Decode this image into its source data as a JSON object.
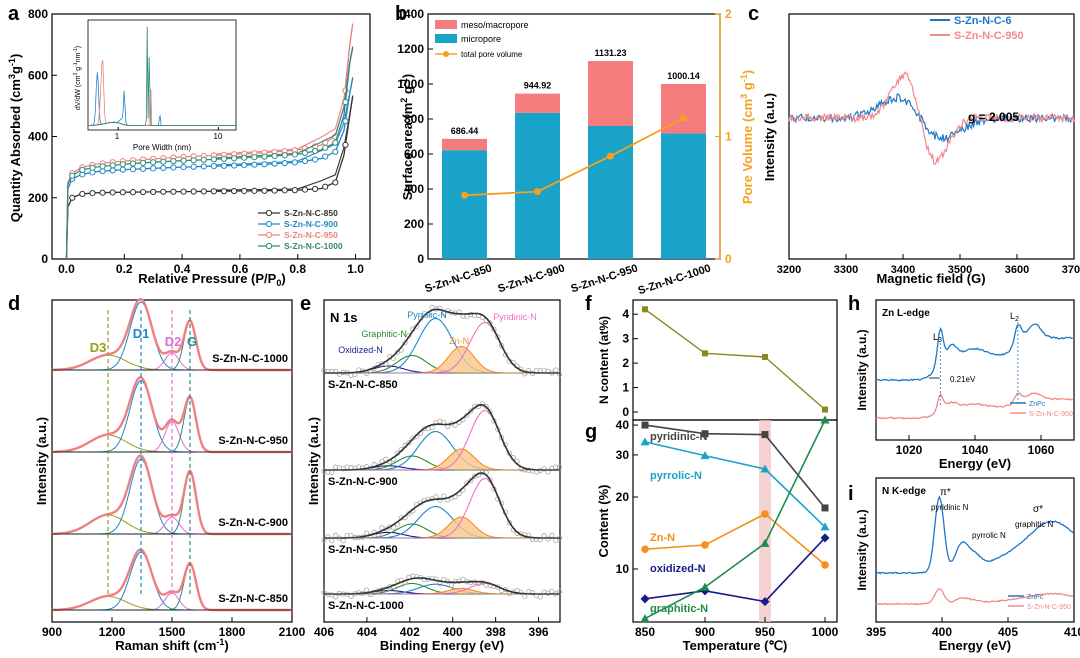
{
  "figure": {
    "description": "Multi-panel scientific figure"
  },
  "chart_data": [
    {
      "panel": "a",
      "type": "line",
      "xlabel": "Relative Pressure (P/P0)",
      "ylabel": "Quantity Absorbed (cm3g-1)",
      "xlim": [
        -0.05,
        1.05
      ],
      "ylim": [
        0,
        800
      ],
      "xticks": [
        "0.0",
        "0.2",
        "0.4",
        "0.6",
        "0.8",
        "1.0"
      ],
      "yticks": [
        "0",
        "200",
        "400",
        "600",
        "800"
      ],
      "series": [
        {
          "name": "S-Zn-N-C-850",
          "color": "#333333",
          "x": [
            0,
            0.005,
            0.02,
            0.05,
            0.1,
            0.2,
            0.3,
            0.4,
            0.5,
            0.6,
            0.7,
            0.8,
            0.88,
            0.93,
            0.96,
            0.98,
            0.99
          ],
          "y": [
            0,
            170,
            200,
            212,
            216,
            218,
            219,
            220,
            221,
            222,
            223,
            225,
            230,
            250,
            340,
            470,
            530
          ]
        },
        {
          "name": "S-Zn-N-C-900",
          "color": "#1E88C8",
          "x": [
            0,
            0.005,
            0.02,
            0.05,
            0.1,
            0.2,
            0.3,
            0.4,
            0.5,
            0.6,
            0.7,
            0.8,
            0.88,
            0.93,
            0.96,
            0.98,
            0.99
          ],
          "y": [
            0,
            230,
            262,
            275,
            285,
            292,
            296,
            300,
            303,
            306,
            310,
            316,
            328,
            350,
            420,
            540,
            590
          ]
        },
        {
          "name": "S-Zn-N-C-950",
          "color": "#F08080",
          "x": [
            0,
            0.005,
            0.02,
            0.05,
            0.1,
            0.2,
            0.3,
            0.4,
            0.5,
            0.6,
            0.7,
            0.8,
            0.88,
            0.93,
            0.96,
            0.98,
            0.99
          ],
          "y": [
            0,
            250,
            280,
            298,
            310,
            320,
            327,
            333,
            338,
            343,
            348,
            356,
            372,
            400,
            500,
            700,
            765
          ]
        },
        {
          "name": "S-Zn-N-C-1000",
          "color": "#2E8B7A",
          "x": [
            0,
            0.005,
            0.02,
            0.05,
            0.1,
            0.2,
            0.3,
            0.4,
            0.5,
            0.6,
            0.7,
            0.8,
            0.88,
            0.93,
            0.96,
            0.98,
            0.99
          ],
          "y": [
            0,
            245,
            272,
            290,
            300,
            310,
            316,
            321,
            325,
            330,
            335,
            342,
            356,
            380,
            470,
            640,
            690
          ]
        }
      ],
      "inset": {
        "xlabel": "Pore Width (nm)",
        "ylabel": "dV/dW (cm3 g-1nm-1)",
        "xticks": [
          "1",
          "10"
        ]
      }
    },
    {
      "panel": "b",
      "type": "bar",
      "ylabel": "Surface area (m2 g-1)",
      "y2label": "Pore Volume (cm3 g-1)",
      "categories": [
        "S-Zn-N-C-850",
        "S-Zn-N-C-900",
        "S-Zn-N-C-950",
        "S-Zn-N-C-1000"
      ],
      "ylim": [
        0,
        1400
      ],
      "y2lim": [
        0,
        2
      ],
      "yticks": [
        "0",
        "200",
        "400",
        "600",
        "800",
        "1000",
        "1200",
        "1400"
      ],
      "y2ticks": [
        "0",
        "1",
        "2"
      ],
      "series": [
        {
          "name": "micropore",
          "color": "#1AA3C8",
          "values": [
            622,
            835,
            760,
            718
          ]
        },
        {
          "name": "meso/macropore",
          "color": "#F47C7C",
          "values": [
            64.44,
            109.92,
            371.23,
            282.14
          ]
        }
      ],
      "totals": [
        "686.44",
        "944.92",
        "1131.23",
        "1000.14"
      ],
      "line": {
        "name": "total pore volume",
        "color": "#F5A020",
        "values": [
          0.52,
          0.55,
          0.84,
          1.15
        ]
      }
    },
    {
      "panel": "c",
      "type": "line",
      "xlabel": "Magnetic field (G)",
      "ylabel": "Intensity (a.u.)",
      "xlim": [
        3200,
        3700
      ],
      "xticks": [
        "3200",
        "3300",
        "3400",
        "3500",
        "3600",
        "3700"
      ],
      "annotation": "g = 2.005",
      "series": [
        {
          "name": "S-Zn-N-C-6",
          "color": "#1E78C8"
        },
        {
          "name": "S-Zn-N-C-950",
          "color": "#F08A8A"
        }
      ]
    },
    {
      "panel": "d",
      "type": "line",
      "xlabel": "Raman shift (cm-1)",
      "ylabel": "Intensity (a.u.)",
      "xlim": [
        900,
        2100
      ],
      "xticks": [
        "900",
        "1200",
        "1500",
        "1800",
        "2100"
      ],
      "peaks": [
        "D3",
        "D1",
        "D2",
        "G"
      ],
      "samples": [
        "S-Zn-N-C-1000",
        "S-Zn-N-C-950",
        "S-Zn-N-C-900",
        "S-Zn-N-C-850"
      ]
    },
    {
      "panel": "e",
      "type": "line",
      "title": "N 1s",
      "xlabel": "Binding Energy (eV)",
      "ylabel": "Intensity (a.u.)",
      "xlim": [
        406,
        395
      ],
      "xticks": [
        "406",
        "404",
        "402",
        "400",
        "398",
        "396"
      ],
      "components": [
        "Oxidized-N",
        "Graphitic-N",
        "Pyrrolic-N",
        "Zn-N",
        "Pyridinic-N"
      ],
      "samples": [
        "S-Zn-N-C-850",
        "S-Zn-N-C-900",
        "S-Zn-N-C-950",
        "S-Zn-N-C-1000"
      ]
    },
    {
      "panel": "f",
      "type": "line",
      "ylabel": "N content (at%)",
      "ylim": [
        0,
        4.5
      ],
      "yticks": [
        "0",
        "1",
        "2",
        "3",
        "4"
      ],
      "x": [
        850,
        900,
        950,
        1000
      ],
      "series": [
        {
          "color": "#8A8A1A",
          "values": [
            4.2,
            2.4,
            2.25,
            0.1
          ]
        }
      ]
    },
    {
      "panel": "g",
      "type": "line",
      "xlabel": "Temperature (℃)",
      "ylabel": "Content (%)",
      "xlim": [
        840,
        1010
      ],
      "ylim": [
        6,
        42
      ],
      "yscale": "log",
      "xticks": [
        "850",
        "900",
        "950",
        "1000"
      ],
      "yticks": [
        "10",
        "20",
        "30",
        "40"
      ],
      "x": [
        850,
        900,
        950,
        1000
      ],
      "series": [
        {
          "name": "pyridinic-N",
          "color": "#444444",
          "values": [
            40,
            36.8,
            36.5,
            18
          ]
        },
        {
          "name": "pyrrolic-N",
          "color": "#1AA3C8",
          "values": [
            34,
            29.8,
            26.2,
            15
          ]
        },
        {
          "name": "Zn-N",
          "color": "#F5901E",
          "values": [
            12.1,
            12.6,
            17,
            10.4
          ]
        },
        {
          "name": "oxidized-N",
          "color": "#1A1A8A",
          "values": [
            7.5,
            8.1,
            7.3,
            13.5
          ]
        },
        {
          "name": "graphitic-N",
          "color": "#1E8C4A",
          "values": [
            6.2,
            8.4,
            12.8,
            42
          ]
        }
      ]
    },
    {
      "panel": "h",
      "type": "line",
      "title": "Zn L-edge",
      "xlabel": "Energy (eV)",
      "ylabel": "Intensity (a.u.)",
      "xlim": [
        1010,
        1070
      ],
      "xticks": [
        "1020",
        "1040",
        "1060"
      ],
      "labels": [
        "L3",
        "L2",
        "0.21eV"
      ],
      "series": [
        {
          "name": "ZnPc",
          "color": "#1E78C8"
        },
        {
          "name": "S-Zn-N-C-950",
          "color": "#F08A8A"
        }
      ]
    },
    {
      "panel": "i",
      "type": "line",
      "title": "N  K-edge",
      "xlabel": "Energy (eV)",
      "ylabel": "Intensity (a.u.)",
      "xlim": [
        395,
        410
      ],
      "xticks": [
        "395",
        "400",
        "405",
        "410"
      ],
      "labels": [
        "π*",
        "pyridinic N",
        "pyrrolic N",
        "graphitic N",
        "σ*"
      ],
      "series": [
        {
          "name": "ZnPc",
          "color": "#1E78C8"
        },
        {
          "name": "S-Zn-N-C-950",
          "color": "#F08A8A"
        }
      ]
    }
  ],
  "labels": {
    "a": {
      "letter": "a",
      "xlabel": "Relative Pressure (P/P",
      "xsub": "0",
      "xend": ")",
      "ylabel": "Quantity Absorbed (cm",
      "ysup": "3",
      "ymid": "g",
      "ysup2": "-1",
      "yend": ")",
      "inset_x": "Pore Width (nm)",
      "inset_y": "dV/dW (cm",
      "inset_ysup": "3",
      "inset_ymid": " g",
      "inset_ysup2": "-1",
      "inset_yend": "nm",
      "inset_ysup3": "-1",
      "inset_yend2": ")",
      "inset_t1": "1",
      "inset_t10": "10"
    },
    "b": {
      "letter": "b",
      "legend": [
        "meso/macropore",
        "micropore",
        "total pore volume"
      ]
    },
    "c": {
      "letter": "c",
      "legend": [
        "S-Zn-N-C-6",
        "S-Zn-N-C-950"
      ],
      "g": "g = 2.005"
    },
    "d": {
      "letter": "d",
      "peaks": [
        "D3",
        "D1",
        "D2",
        "G"
      ]
    },
    "e": {
      "letter": "e",
      "title": "N 1s",
      "peaks": [
        "Pyrrolic-N",
        "Graphitic-N",
        "Oxidized-N",
        "Zn-N",
        "Pyridinic-N"
      ]
    },
    "f": {
      "letter": "f"
    },
    "g": {
      "letter": "g"
    },
    "h": {
      "letter": "h",
      "title": "Zn L-edge",
      "L3": "L",
      "L3s": "3",
      "L2": "L",
      "L2s": "2",
      "shift": "0.21eV",
      "legend": [
        "ZnPc",
        "S-Zn-N-C-950"
      ]
    },
    "i": {
      "letter": "i",
      "title": "N  K-edge",
      "pi": "π*",
      "sigma": "σ*",
      "pyridinic": "pyridinic N",
      "pyrrolic": "pyrrolic N",
      "graphitic": "graphitic N",
      "legend": [
        "ZnPc",
        "S-Zn-N-C-950"
      ]
    }
  }
}
